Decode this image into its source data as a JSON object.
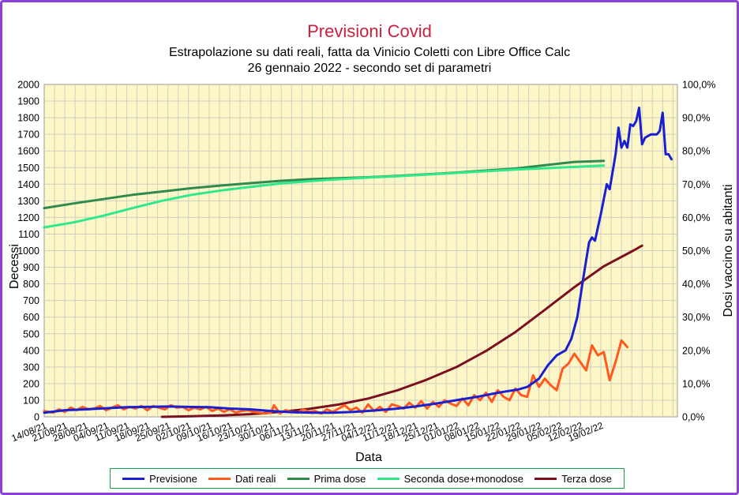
{
  "colors": {
    "frame": "#8a3fd6",
    "plot_bg": "#fdf7c8",
    "grid": "#cfcfbf",
    "title": "#c9213f"
  },
  "chart_data": {
    "type": "line",
    "title": "Previsioni Covid",
    "subtitle_lines": [
      "Estrapolazione su dati reali, fatta da Vinicio Coletti con Libre Office Calc",
      "26 gennaio 2022 - secondo set di parametri"
    ],
    "xlabel": "Data",
    "ylabel": "Decessi",
    "y2label": "Dosi vaccino su abitanti",
    "ylim": [
      0,
      2000
    ],
    "y2lim": [
      0,
      1
    ],
    "grid": true,
    "legend_position": "bottom",
    "x_tick_labels": [
      "14/08/21",
      "21/08/21",
      "28/08/21",
      "04/09/21",
      "11/09/21",
      "18/09/21",
      "25/09/21",
      "02/10/21",
      "09/10/21",
      "16/10/21",
      "23/10/21",
      "30/10/21",
      "06/11/21",
      "13/11/21",
      "20/11/21",
      "27/11/21",
      "04/12/21",
      "11/12/21",
      "18/12/21",
      "25/12/21",
      "01/01/22",
      "08/01/22",
      "15/01/22",
      "22/01/22",
      "29/01/22",
      "05/02/22",
      "12/02/22",
      "19/02/22"
    ],
    "y_tick_labels": [
      "0",
      "100",
      "200",
      "300",
      "400",
      "500",
      "600",
      "700",
      "800",
      "900",
      "1000",
      "1100",
      "1200",
      "1300",
      "1400",
      "1500",
      "1600",
      "1700",
      "1800",
      "1900",
      "2000"
    ],
    "y2_tick_labels": [
      "0,0%",
      "10,0%",
      "20,0%",
      "30,0%",
      "40,0%",
      "50,0%",
      "60,0%",
      "70,0%",
      "80,0%",
      "90,0%",
      "100,0%"
    ],
    "series": [
      {
        "name": "Previsione",
        "axis": "left",
        "color": "#1a1fd0",
        "points": [
          [
            0,
            25
          ],
          [
            7,
            40
          ],
          [
            14,
            45
          ],
          [
            21,
            52
          ],
          [
            28,
            58
          ],
          [
            35,
            60
          ],
          [
            42,
            62
          ],
          [
            49,
            60
          ],
          [
            56,
            58
          ],
          [
            63,
            50
          ],
          [
            70,
            45
          ],
          [
            77,
            35
          ],
          [
            84,
            28
          ],
          [
            91,
            25
          ],
          [
            98,
            25
          ],
          [
            105,
            30
          ],
          [
            112,
            38
          ],
          [
            119,
            48
          ],
          [
            126,
            62
          ],
          [
            133,
            80
          ],
          [
            140,
            100
          ],
          [
            147,
            120
          ],
          [
            154,
            145
          ],
          [
            161,
            165
          ],
          [
            164,
            180
          ],
          [
            168,
            230
          ],
          [
            171,
            310
          ],
          [
            174,
            370
          ],
          [
            177,
            400
          ],
          [
            179,
            470
          ],
          [
            181,
            600
          ],
          [
            183,
            830
          ],
          [
            185,
            1050
          ],
          [
            186,
            1080
          ],
          [
            187,
            1060
          ],
          [
            189,
            1220
          ],
          [
            191,
            1400
          ],
          [
            192,
            1370
          ],
          [
            194,
            1580
          ],
          [
            195,
            1740
          ],
          [
            196,
            1620
          ],
          [
            197,
            1660
          ],
          [
            198,
            1620
          ],
          [
            199,
            1760
          ],
          [
            200,
            1750
          ],
          [
            201,
            1780
          ],
          [
            202,
            1860
          ],
          [
            203,
            1640
          ],
          [
            204,
            1680
          ],
          [
            206,
            1700
          ],
          [
            208,
            1700
          ],
          [
            209,
            1720
          ],
          [
            210,
            1830
          ],
          [
            211,
            1580
          ],
          [
            212,
            1580
          ],
          [
            213,
            1550
          ]
        ]
      },
      {
        "name": "Dati reali",
        "axis": "left",
        "color": "#ff5a1f",
        "points": [
          [
            0,
            35
          ],
          [
            3,
            25
          ],
          [
            5,
            45
          ],
          [
            7,
            30
          ],
          [
            9,
            55
          ],
          [
            11,
            40
          ],
          [
            13,
            60
          ],
          [
            15,
            45
          ],
          [
            17,
            50
          ],
          [
            19,
            65
          ],
          [
            21,
            40
          ],
          [
            23,
            55
          ],
          [
            25,
            70
          ],
          [
            27,
            45
          ],
          [
            29,
            60
          ],
          [
            31,
            50
          ],
          [
            33,
            65
          ],
          [
            35,
            40
          ],
          [
            37,
            65
          ],
          [
            39,
            55
          ],
          [
            41,
            45
          ],
          [
            43,
            70
          ],
          [
            45,
            55
          ],
          [
            47,
            60
          ],
          [
            49,
            40
          ],
          [
            51,
            55
          ],
          [
            53,
            45
          ],
          [
            55,
            60
          ],
          [
            57,
            35
          ],
          [
            59,
            50
          ],
          [
            61,
            30
          ],
          [
            63,
            45
          ],
          [
            65,
            25
          ],
          [
            67,
            35
          ],
          [
            69,
            40
          ],
          [
            71,
            30
          ],
          [
            73,
            25
          ],
          [
            75,
            20
          ],
          [
            77,
            25
          ],
          [
            78,
            70
          ],
          [
            80,
            20
          ],
          [
            82,
            40
          ],
          [
            84,
            30
          ],
          [
            86,
            25
          ],
          [
            88,
            45
          ],
          [
            90,
            30
          ],
          [
            92,
            35
          ],
          [
            94,
            20
          ],
          [
            96,
            45
          ],
          [
            98,
            30
          ],
          [
            100,
            50
          ],
          [
            102,
            70
          ],
          [
            104,
            40
          ],
          [
            106,
            55
          ],
          [
            108,
            25
          ],
          [
            110,
            75
          ],
          [
            112,
            35
          ],
          [
            114,
            60
          ],
          [
            116,
            30
          ],
          [
            118,
            75
          ],
          [
            120,
            65
          ],
          [
            122,
            50
          ],
          [
            124,
            85
          ],
          [
            126,
            55
          ],
          [
            128,
            95
          ],
          [
            130,
            50
          ],
          [
            132,
            90
          ],
          [
            134,
            60
          ],
          [
            136,
            100
          ],
          [
            138,
            80
          ],
          [
            140,
            65
          ],
          [
            142,
            110
          ],
          [
            144,
            70
          ],
          [
            146,
            130
          ],
          [
            148,
            100
          ],
          [
            150,
            145
          ],
          [
            152,
            90
          ],
          [
            154,
            160
          ],
          [
            156,
            120
          ],
          [
            158,
            100
          ],
          [
            160,
            170
          ],
          [
            162,
            130
          ],
          [
            164,
            120
          ],
          [
            166,
            250
          ],
          [
            168,
            180
          ],
          [
            170,
            230
          ],
          [
            172,
            190
          ],
          [
            174,
            160
          ],
          [
            176,
            290
          ],
          [
            178,
            320
          ],
          [
            180,
            380
          ],
          [
            182,
            330
          ],
          [
            184,
            280
          ],
          [
            186,
            430
          ],
          [
            188,
            370
          ],
          [
            190,
            390
          ],
          [
            192,
            220
          ],
          [
            194,
            330
          ],
          [
            196,
            460
          ],
          [
            198,
            420
          ]
        ]
      },
      {
        "name": "Prima dose",
        "axis": "right",
        "color": "#2f8a4d",
        "points": [
          [
            0,
            0.628
          ],
          [
            10,
            0.642
          ],
          [
            20,
            0.655
          ],
          [
            30,
            0.668
          ],
          [
            40,
            0.678
          ],
          [
            50,
            0.688
          ],
          [
            60,
            0.696
          ],
          [
            70,
            0.703
          ],
          [
            80,
            0.71
          ],
          [
            90,
            0.715
          ],
          [
            100,
            0.718
          ],
          [
            110,
            0.721
          ],
          [
            120,
            0.725
          ],
          [
            130,
            0.73
          ],
          [
            140,
            0.735
          ],
          [
            150,
            0.741
          ],
          [
            160,
            0.747
          ],
          [
            170,
            0.757
          ],
          [
            180,
            0.767
          ],
          [
            190,
            0.77
          ]
        ]
      },
      {
        "name": "Seconda dose+monodose",
        "axis": "right",
        "color": "#2ee88a",
        "points": [
          [
            0,
            0.57
          ],
          [
            10,
            0.585
          ],
          [
            20,
            0.605
          ],
          [
            30,
            0.628
          ],
          [
            40,
            0.65
          ],
          [
            50,
            0.668
          ],
          [
            60,
            0.681
          ],
          [
            70,
            0.692
          ],
          [
            80,
            0.702
          ],
          [
            90,
            0.709
          ],
          [
            100,
            0.715
          ],
          [
            110,
            0.72
          ],
          [
            120,
            0.724
          ],
          [
            130,
            0.729
          ],
          [
            140,
            0.734
          ],
          [
            150,
            0.739
          ],
          [
            160,
            0.744
          ],
          [
            170,
            0.748
          ],
          [
            180,
            0.752
          ],
          [
            190,
            0.756
          ]
        ]
      },
      {
        "name": "Terza dose",
        "axis": "right",
        "color": "#7a1020",
        "points": [
          [
            40,
            0.0
          ],
          [
            50,
            0.002
          ],
          [
            60,
            0.004
          ],
          [
            70,
            0.008
          ],
          [
            80,
            0.015
          ],
          [
            90,
            0.024
          ],
          [
            100,
            0.037
          ],
          [
            110,
            0.055
          ],
          [
            120,
            0.08
          ],
          [
            130,
            0.112
          ],
          [
            140,
            0.15
          ],
          [
            150,
            0.198
          ],
          [
            160,
            0.255
          ],
          [
            170,
            0.322
          ],
          [
            180,
            0.39
          ],
          [
            190,
            0.453
          ],
          [
            200,
            0.5
          ],
          [
            203,
            0.515
          ]
        ]
      }
    ]
  }
}
